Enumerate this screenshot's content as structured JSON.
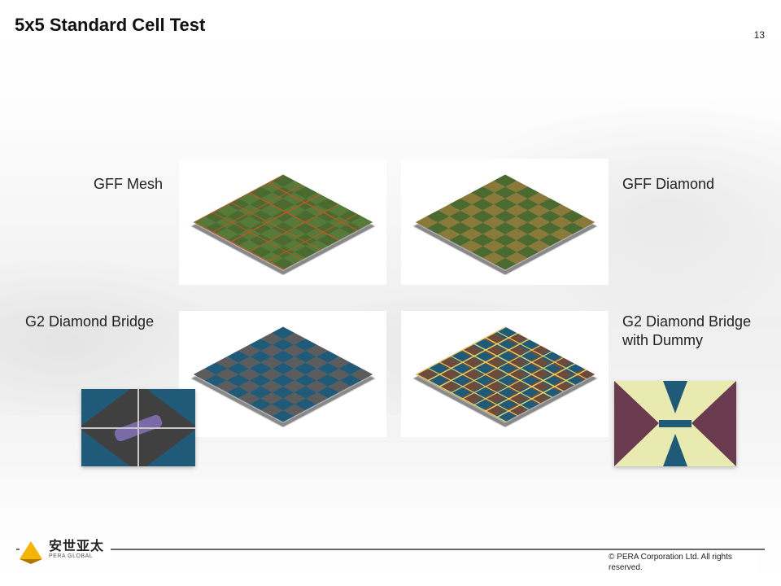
{
  "title": "5x5 Standard Cell Test",
  "page_number": "13",
  "labels": {
    "top_left": "GFF Mesh",
    "top_right": "GFF Diamond",
    "bottom_left": "G2 Diamond Bridge",
    "bottom_right": "G2 Diamond Bridge with Dummy"
  },
  "panels": {
    "gff_mesh": {
      "base_color": "#4a6a2f",
      "alt_color": "#567a38",
      "mesh_line_color": "#b85828",
      "background": "#ffffff"
    },
    "gff_diamond": {
      "color_a": "#4a6a2f",
      "color_b": "#8a7a3a",
      "background": "#ffffff"
    },
    "g2_bridge": {
      "color_a": "#1f5a78",
      "color_b": "#5c5c5c",
      "background": "#ffffff"
    },
    "g2_bridge_dummy": {
      "color_a": "#1f5a78",
      "color_b": "#6c4a3c",
      "wire_color": "#ffdc5a",
      "background": "#ffffff"
    }
  },
  "insets": {
    "left": {
      "bg": "#404040",
      "tri_color": "#1f5a78",
      "bridge_color": "#7a6aa8"
    },
    "right": {
      "bg": "#ffffff",
      "field_color": "#e8eab0",
      "tri_color": "#6a3a4e",
      "bar_color": "#1f5a78"
    }
  },
  "footer": {
    "logo_cn": "安世亚太",
    "logo_en": "PERA GLOBAL",
    "copyright": "©  PERA Corporation Ltd. All rights reserved."
  },
  "colors": {
    "text": "#111111",
    "footline": "#6a6a6a",
    "logo_triangle": "#f4b400"
  }
}
